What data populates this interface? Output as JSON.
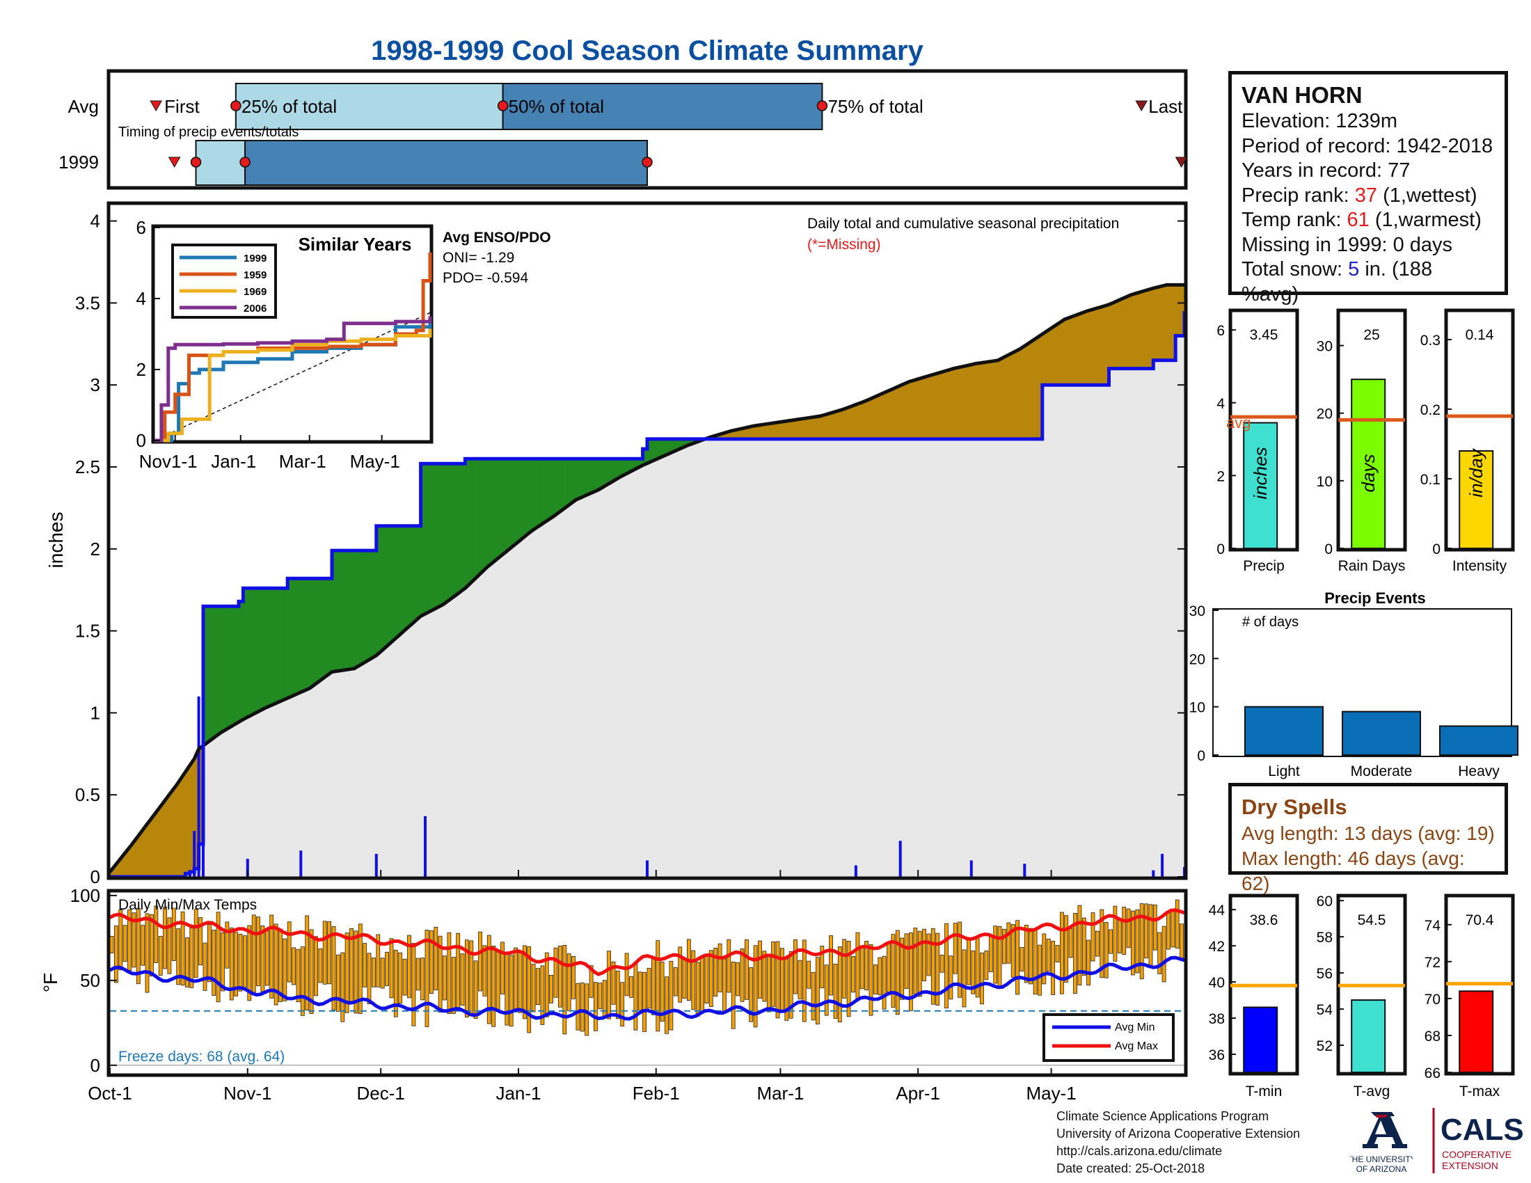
{
  "title": "1998-1999 Cool Season Climate Summary",
  "colors": {
    "title_blue": "#0b4fa0",
    "observed_blue": "#1010e6",
    "surplus_green": "#218a21",
    "deficit_gold": "#b8860b",
    "avg_gray": "#e8e8e8",
    "temp_bar_orange": "#f5a000",
    "avg_max_red": "#f01010",
    "avg_min_blue": "#1010e6",
    "avg_line_orange": "#d95a1a"
  },
  "timing": {
    "avg_label": "Avg",
    "year_label": "1999",
    "note": "Timing of precip events/totals",
    "first_label": "First",
    "last_label": "Last",
    "p25_label": "25% of total",
    "p50_label": "50% of total",
    "p75_label": "75% of total",
    "avg_markers_days": {
      "first": 15,
      "p25": 41,
      "p50": 128,
      "p75": 232,
      "last": 336
    },
    "y1999_markers_days": {
      "first": 21,
      "p25": 29,
      "p50": 44,
      "p75": 175,
      "last": 349
    }
  },
  "main_chart": {
    "ylabel": "inches",
    "note1": "Daily total and cumulative seasonal precipitation",
    "note2": "(*=Missing)",
    "yticks": [
      "0",
      "0.5",
      "1",
      "1.5",
      "2",
      "2.5",
      "3",
      "3.5",
      "4"
    ],
    "xticks": [
      "Oct-1",
      "Nov-1",
      "Dec-1",
      "Jan-1",
      "Feb-1",
      "Mar-1",
      "Apr-1",
      "May-1"
    ]
  },
  "inset": {
    "title": "Similar Years",
    "enso_title": "Avg ENSO/PDO",
    "oni": "ONI= -1.29",
    "pdo": "PDO= -0.594",
    "yticks": [
      "0",
      "2",
      "4",
      "6"
    ],
    "xticks": [
      "Nov1-1",
      "Jan-1",
      "Mar-1",
      "May-1"
    ],
    "legend": [
      {
        "name": "1999",
        "color": "#1f77b4"
      },
      {
        "name": "1959",
        "color": "#d95319"
      },
      {
        "name": "1969",
        "color": "#edb120"
      },
      {
        "name": "2006",
        "color": "#7e2f8e"
      }
    ]
  },
  "bars_top": [
    {
      "name": "Precip",
      "value_label": "3.45",
      "unit": "inches",
      "avg_label": "avg",
      "color": "#40e0d0",
      "yticks": [
        "0",
        "2",
        "4",
        "6"
      ]
    },
    {
      "name": "Rain Days",
      "value_label": "25",
      "unit": "days",
      "avg_label": "",
      "color": "#7cfc00",
      "yticks": [
        "0",
        "10",
        "20",
        "30"
      ]
    },
    {
      "name": "Intensity",
      "value_label": "0.14",
      "unit": "in/day",
      "avg_label": "",
      "color": "#ffd700",
      "yticks": [
        "0",
        "0.1",
        "0.2",
        "0.3"
      ]
    }
  ],
  "precip_events": {
    "title": "Precip Events",
    "ylabel": "# of days",
    "yticks": [
      "0",
      "10",
      "20",
      "30"
    ]
  },
  "info": {
    "station": "VAN HORN",
    "elevation": "Elevation: 1239m",
    "period": "Period of record: 1942-2018",
    "years": "Years in record: 77",
    "precip_rank_label": "Precip rank: ",
    "precip_rank_value": "37",
    "precip_rank_note": " (1,wettest)",
    "temp_rank_label": "Temp rank: ",
    "temp_rank_value": "61",
    "temp_rank_note": " (1,warmest)",
    "missing": "Missing in 1999: 0 days",
    "snow_label": "Total snow: ",
    "snow_value": "5",
    "snow_note": " in. (188 %avg)"
  },
  "dry_spells": {
    "title": "Dry Spells",
    "avg_length": "Avg length: 13 days (avg: 19)",
    "max_length": "Max length: 46 days (avg: 62)"
  },
  "temp_chart": {
    "ylabel": "°F",
    "title": "Daily Min/Max Temps",
    "freeze": "Freeze days: 68 (avg. 64)",
    "yticks": [
      "0",
      "50",
      "100"
    ],
    "legend_min": "Avg Min",
    "legend_max": "Avg Max"
  },
  "temp_bars": [
    {
      "name": "T-min",
      "value_label": "38.6",
      "color": "#0000ff",
      "yticks": [
        "36",
        "38",
        "40",
        "42",
        "44"
      ]
    },
    {
      "name": "T-avg",
      "value_label": "54.5",
      "color": "#40e0d0",
      "yticks": [
        "52",
        "54",
        "56",
        "58",
        "60"
      ]
    },
    {
      "name": "T-max",
      "value_label": "70.4",
      "color": "#ff0000",
      "yticks": [
        "66",
        "68",
        "70",
        "72",
        "74"
      ]
    }
  ],
  "footer": {
    "line1": "Climate Science Applications Program",
    "line2": "University of Arizona Cooperative Extension",
    "line3": "http://cals.arizona.edu/climate",
    "line4": " Date created: 25-Oct-2018"
  },
  "logos": {
    "ua_line1": "THE UNIVERSITY",
    "ua_line2": "OF ARIZONA",
    "cals": "CALS",
    "cals_line1": "COOPERATIVE",
    "cals_line2": "EXTENSION"
  },
  "chart_data": [
    {
      "type": "area",
      "title": "Daily total and cumulative seasonal precipitation",
      "xlabel": "",
      "ylabel": "inches",
      "ylim": [
        0,
        4.1
      ],
      "xlim_days": [
        0,
        242
      ],
      "x_ticks": [
        "Oct-1",
        "Nov-1",
        "Dec-1",
        "Jan-1",
        "Feb-1",
        "Mar-1",
        "Apr-1",
        "May-1"
      ],
      "avg_cumulative": {
        "x_days": [
          0,
          5,
          10,
          15,
          19,
          20,
          21,
          25,
          30,
          35,
          40,
          45,
          50,
          55,
          60,
          65,
          70,
          75,
          80,
          85,
          90,
          95,
          100,
          105,
          110,
          115,
          120,
          125,
          130,
          135,
          140,
          145,
          150,
          155,
          160,
          165,
          170,
          175,
          180,
          185,
          190,
          195,
          200,
          205,
          210,
          215,
          220,
          225,
          230,
          235,
          238,
          242
        ],
        "y": [
          0.03,
          0.2,
          0.38,
          0.56,
          0.72,
          0.78,
          0.8,
          0.88,
          0.96,
          1.03,
          1.09,
          1.15,
          1.25,
          1.27,
          1.35,
          1.47,
          1.59,
          1.66,
          1.76,
          1.89,
          2.0,
          2.11,
          2.2,
          2.3,
          2.36,
          2.44,
          2.51,
          2.57,
          2.63,
          2.68,
          2.72,
          2.75,
          2.77,
          2.79,
          2.81,
          2.85,
          2.9,
          2.96,
          3.02,
          3.06,
          3.1,
          3.13,
          3.15,
          3.22,
          3.31,
          3.4,
          3.45,
          3.49,
          3.55,
          3.59,
          3.61,
          3.61
        ]
      },
      "observed_cumulative": {
        "x_days": [
          0,
          14,
          17,
          18,
          19,
          20,
          21,
          29,
          30,
          40,
          50,
          60,
          70,
          80,
          90,
          100,
          110,
          120,
          121,
          130,
          140,
          150,
          160,
          170,
          180,
          190,
          200,
          210,
          225,
          235,
          240,
          242
        ],
        "y": [
          0,
          0,
          0.02,
          0.03,
          0.05,
          0.2,
          1.65,
          1.68,
          1.76,
          1.82,
          1.99,
          2.14,
          2.52,
          2.55,
          2.55,
          2.55,
          2.55,
          2.61,
          2.67,
          2.67,
          2.67,
          2.67,
          2.67,
          2.67,
          2.67,
          2.67,
          2.67,
          3.0,
          3.1,
          3.15,
          3.3,
          3.45
        ]
      },
      "daily_bars": [
        {
          "day": 18,
          "value": 0.03
        },
        {
          "day": 19,
          "value": 0.28
        },
        {
          "day": 20,
          "value": 1.1
        },
        {
          "day": 21,
          "value": 0.25
        },
        {
          "day": 31,
          "value": 0.11
        },
        {
          "day": 43,
          "value": 0.16
        },
        {
          "day": 60,
          "value": 0.14
        },
        {
          "day": 71,
          "value": 0.37
        },
        {
          "day": 121,
          "value": 0.1
        },
        {
          "day": 168,
          "value": 0.07
        },
        {
          "day": 178,
          "value": 0.22
        },
        {
          "day": 194,
          "value": 0.1
        },
        {
          "day": 206,
          "value": 0.08
        },
        {
          "day": 235,
          "value": 0.04
        },
        {
          "day": 237,
          "value": 0.14
        },
        {
          "day": 242,
          "value": 0.06
        }
      ]
    },
    {
      "type": "line",
      "title": "Similar Years",
      "ylim": [
        0,
        6
      ],
      "x_ticks": [
        "Nov1-1",
        "Jan-1",
        "Mar-1",
        "May-1"
      ],
      "x_months": [
        0,
        8
      ],
      "series": [
        {
          "name": "1999",
          "x": [
            0,
            0.5,
            0.7,
            1.0,
            1.3,
            2.0,
            3.0,
            4.0,
            5.0,
            6.0,
            7.0,
            8.0
          ],
          "y": [
            0,
            0.2,
            1.6,
            1.9,
            2.0,
            2.2,
            2.3,
            2.5,
            2.6,
            2.7,
            3.2,
            3.45
          ]
        },
        {
          "name": "1959",
          "x": [
            0,
            0.3,
            0.6,
            1.0,
            2.0,
            3.0,
            4.0,
            5.0,
            6.0,
            7.0,
            7.6,
            7.8,
            8.0
          ],
          "y": [
            0,
            0.8,
            1.3,
            2.4,
            2.5,
            2.6,
            2.6,
            2.65,
            2.7,
            3.0,
            3.1,
            4.5,
            5.3
          ]
        },
        {
          "name": "1969",
          "x": [
            0,
            0.4,
            0.8,
            1.3,
            1.6,
            2.0,
            3.0,
            4.0,
            5.0,
            6.0,
            7.0,
            8.0
          ],
          "y": [
            0,
            0.2,
            0.6,
            0.6,
            2.4,
            2.5,
            2.55,
            2.7,
            2.8,
            2.85,
            2.95,
            3.15
          ]
        },
        {
          "name": "2006",
          "x": [
            0,
            0.2,
            0.4,
            0.6,
            1.0,
            2.0,
            3.0,
            4.0,
            5.0,
            5.5,
            6.0,
            7.0,
            8.0
          ],
          "y": [
            0,
            1.0,
            2.6,
            2.7,
            2.7,
            2.72,
            2.75,
            2.8,
            2.85,
            3.3,
            3.3,
            3.35,
            3.5
          ]
        }
      ],
      "avg_dashed": {
        "x": [
          0,
          8
        ],
        "y": [
          0,
          3.6
        ]
      }
    },
    {
      "type": "bar",
      "title": "Precip",
      "categories": [
        "Precip"
      ],
      "values": [
        3.45
      ],
      "avg": 3.61,
      "ylim": [
        0,
        6.5
      ]
    },
    {
      "type": "bar",
      "title": "Rain Days",
      "categories": [
        "Rain Days"
      ],
      "values": [
        25
      ],
      "avg": 19,
      "ylim": [
        0,
        35
      ]
    },
    {
      "type": "bar",
      "title": "Intensity",
      "categories": [
        "Intensity"
      ],
      "values": [
        0.14
      ],
      "avg": 0.19,
      "ylim": [
        0,
        0.34
      ]
    },
    {
      "type": "bar",
      "title": "Precip Events",
      "ylabel": "# of days",
      "categories": [
        "Light",
        "Moderate",
        "Heavy"
      ],
      "values": [
        10,
        9,
        6
      ],
      "ylim": [
        0,
        30
      ]
    },
    {
      "type": "line",
      "title": "Daily Min/Max Temps",
      "ylabel": "°F",
      "ylim": [
        -5,
        102
      ],
      "freeze_line": 32,
      "avg_max": {
        "x_days": [
          0,
          20,
          40,
          60,
          75,
          90,
          100,
          110,
          120,
          130,
          145,
          160,
          175,
          190,
          205,
          220,
          235,
          242
        ],
        "y": [
          87,
          82,
          78,
          74,
          70,
          66,
          62,
          55,
          62,
          64,
          64,
          66,
          70,
          74,
          79,
          84,
          88,
          90
        ]
      },
      "avg_min": {
        "x_days": [
          0,
          20,
          40,
          60,
          75,
          90,
          100,
          110,
          120,
          130,
          145,
          160,
          175,
          190,
          205,
          220,
          235,
          242
        ],
        "y": [
          56,
          50,
          40,
          36,
          33,
          31,
          30,
          29,
          30,
          31,
          32,
          36,
          40,
          45,
          50,
          55,
          60,
          62
        ]
      }
    },
    {
      "type": "bar",
      "title": "T-min",
      "categories": [
        "T-min"
      ],
      "values": [
        38.6
      ],
      "avg": 39.8,
      "ylim": [
        35,
        44.7
      ]
    },
    {
      "type": "bar",
      "title": "T-avg",
      "categories": [
        "T-avg"
      ],
      "values": [
        54.5
      ],
      "avg": 55.3,
      "ylim": [
        50.5,
        60.2
      ]
    },
    {
      "type": "bar",
      "title": "T-max",
      "categories": [
        "T-max"
      ],
      "values": [
        70.4
      ],
      "avg": 70.8,
      "ylim": [
        66,
        75.5
      ]
    }
  ]
}
